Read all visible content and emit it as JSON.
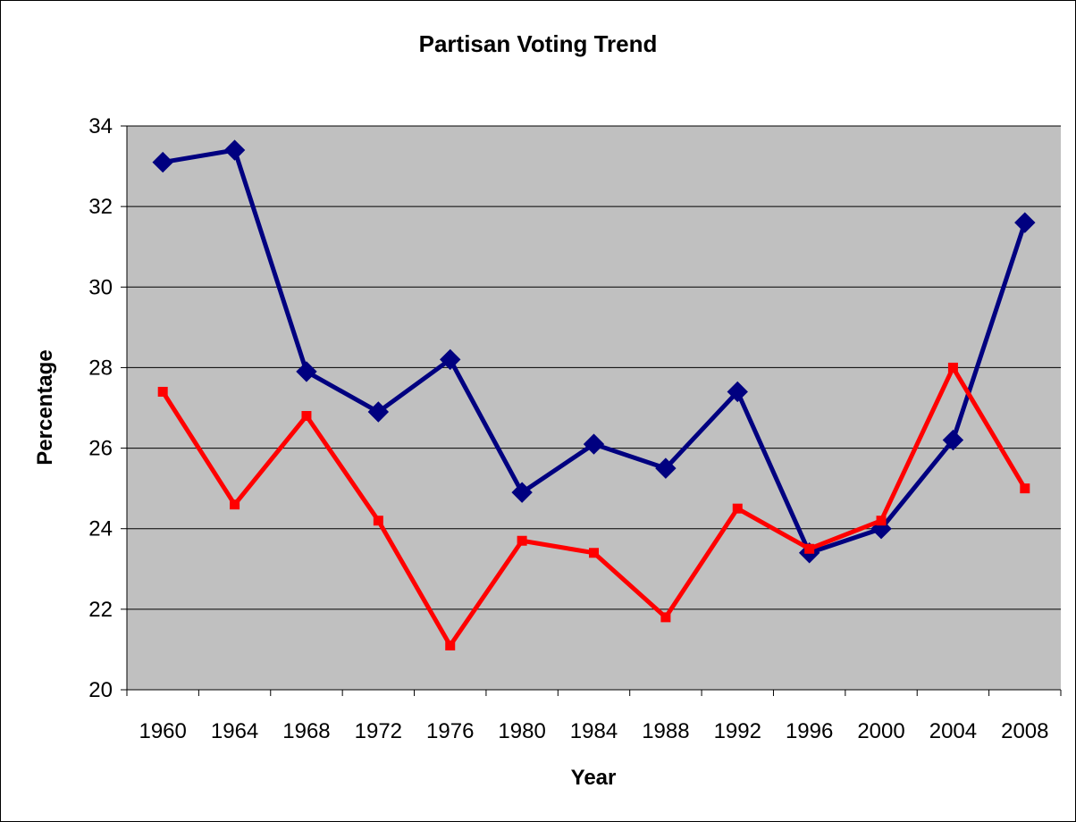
{
  "chart_data": {
    "type": "line",
    "title": "Partisan Voting Trend",
    "xlabel": "Year",
    "ylabel": "Percentage",
    "ylim": [
      20,
      34
    ],
    "yticks": [
      20,
      22,
      24,
      26,
      28,
      30,
      32,
      34
    ],
    "categories": [
      "1960",
      "1964",
      "1968",
      "1972",
      "1976",
      "1980",
      "1984",
      "1988",
      "1992",
      "1996",
      "2000",
      "2004",
      "2008"
    ],
    "grid": true,
    "legend": "none",
    "plot_background": "#c0c0c0",
    "series": [
      {
        "color": "#000080",
        "marker": "diamond",
        "values": [
          33.1,
          33.4,
          27.9,
          26.9,
          28.2,
          24.9,
          26.1,
          25.5,
          27.4,
          23.4,
          24.0,
          26.2,
          31.6
        ]
      },
      {
        "color": "#ff0000",
        "marker": "square",
        "values": [
          27.4,
          24.6,
          26.8,
          24.2,
          21.1,
          23.7,
          23.4,
          21.8,
          24.5,
          23.5,
          24.2,
          28.0,
          25.0
        ]
      }
    ]
  }
}
